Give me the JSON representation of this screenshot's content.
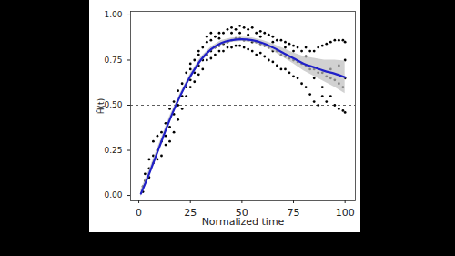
{
  "chart_data": {
    "type": "scatter",
    "x_label": "Normalized time",
    "y_label": "Ĥ(t)",
    "xlim": [
      -4,
      105
    ],
    "ylim": [
      -0.03,
      1.02
    ],
    "xticks": [
      0,
      25,
      50,
      75,
      100
    ],
    "yticks": [
      {
        "value": 0,
        "label": "0.00"
      },
      {
        "value": 0.25,
        "label": "0.25"
      },
      {
        "value": 0.5,
        "label": "0.50"
      },
      {
        "value": 0.75,
        "label": "0.75"
      },
      {
        "value": 1,
        "label": "1.00"
      }
    ],
    "grid": false,
    "color": "#000000",
    "marker": "circle",
    "x": [
      2,
      3,
      5,
      7,
      9,
      11,
      13,
      15,
      17,
      19,
      21,
      23,
      25,
      27,
      29,
      31,
      33,
      35,
      37,
      39,
      41,
      43,
      45,
      47,
      49,
      51,
      53,
      55,
      57,
      59,
      61,
      63,
      65,
      67,
      69,
      71,
      73,
      75,
      77,
      79,
      81,
      83,
      85,
      87,
      89,
      91,
      93,
      95,
      97,
      99,
      100
    ],
    "values": [
      [
        0.02,
        0.05
      ],
      [
        0.08,
        0.12
      ],
      [
        0.15,
        0.2,
        0.1
      ],
      [
        0.22,
        0.3,
        0.18
      ],
      [
        0.25,
        0.33,
        0.2
      ],
      [
        0.3,
        0.35,
        0.22
      ],
      [
        0.33,
        0.4,
        0.28
      ],
      [
        0.38,
        0.48,
        0.3
      ],
      [
        0.45,
        0.52,
        0.35
      ],
      [
        0.5,
        0.58,
        0.42
      ],
      [
        0.55,
        0.62,
        0.48
      ],
      [
        0.6,
        0.68,
        0.55
      ],
      [
        0.64,
        0.7,
        0.6,
        0.73
      ],
      [
        0.68,
        0.75,
        0.63
      ],
      [
        0.72,
        0.78,
        0.67,
        0.8
      ],
      [
        0.75,
        0.82,
        0.7
      ],
      [
        0.78,
        0.85,
        0.75,
        0.88
      ],
      [
        0.8,
        0.86,
        0.76,
        0.9
      ],
      [
        0.82,
        0.88,
        0.78
      ],
      [
        0.83,
        0.9,
        0.8,
        0.87
      ],
      [
        0.84,
        0.9,
        0.8
      ],
      [
        0.85,
        0.92,
        0.82
      ],
      [
        0.86,
        0.93,
        0.82,
        0.9
      ],
      [
        0.87,
        0.92,
        0.83
      ],
      [
        0.87,
        0.94,
        0.83,
        0.9
      ],
      [
        0.86,
        0.93,
        0.82
      ],
      [
        0.86,
        0.92,
        0.81,
        0.89
      ],
      [
        0.85,
        0.93,
        0.8
      ],
      [
        0.85,
        0.9,
        0.78
      ],
      [
        0.84,
        0.91,
        0.79,
        0.88
      ],
      [
        0.83,
        0.9,
        0.77
      ],
      [
        0.82,
        0.89,
        0.75
      ],
      [
        0.8,
        0.88,
        0.74,
        0.85
      ],
      [
        0.8,
        0.86,
        0.72
      ],
      [
        0.78,
        0.86,
        0.7
      ],
      [
        0.77,
        0.85,
        0.7,
        0.82
      ],
      [
        0.76,
        0.84,
        0.68
      ],
      [
        0.75,
        0.83,
        0.66,
        0.8
      ],
      [
        0.74,
        0.82,
        0.65
      ],
      [
        0.73,
        0.8,
        0.62
      ],
      [
        0.72,
        0.82,
        0.6,
        0.77
      ],
      [
        0.7,
        0.8,
        0.56
      ],
      [
        0.7,
        0.8,
        0.52,
        0.65
      ],
      [
        0.68,
        0.82,
        0.5
      ],
      [
        0.68,
        0.83,
        0.55,
        0.6
      ],
      [
        0.66,
        0.84,
        0.52
      ],
      [
        0.65,
        0.85,
        0.55,
        0.7
      ],
      [
        0.64,
        0.86,
        0.5
      ],
      [
        0.62,
        0.86,
        0.48,
        0.72
      ],
      [
        0.6,
        0.86,
        0.47
      ],
      [
        0.65,
        0.85,
        0.46,
        0.75
      ]
    ],
    "smooth": {
      "type": "line",
      "color": "#2020c8",
      "x": [
        1,
        5,
        10,
        15,
        20,
        25,
        30,
        35,
        40,
        45,
        50,
        55,
        60,
        65,
        70,
        75,
        80,
        85,
        90,
        95,
        100
      ],
      "values": [
        0.01,
        0.12,
        0.27,
        0.42,
        0.55,
        0.66,
        0.75,
        0.81,
        0.845,
        0.86,
        0.865,
        0.86,
        0.845,
        0.82,
        0.79,
        0.76,
        0.73,
        0.71,
        0.69,
        0.675,
        0.655
      ],
      "lower": [
        -0.01,
        0.1,
        0.25,
        0.4,
        0.535,
        0.645,
        0.735,
        0.797,
        0.832,
        0.848,
        0.853,
        0.847,
        0.83,
        0.8,
        0.765,
        0.73,
        0.69,
        0.66,
        0.63,
        0.6,
        0.565
      ],
      "upper": [
        0.03,
        0.14,
        0.29,
        0.44,
        0.565,
        0.675,
        0.765,
        0.823,
        0.858,
        0.872,
        0.877,
        0.873,
        0.86,
        0.84,
        0.815,
        0.79,
        0.77,
        0.76,
        0.75,
        0.75,
        0.745
      ],
      "band_color": "#bdbdbd"
    },
    "reference_line": {
      "value": 0.5,
      "line_style": "dashed",
      "color": "#333333"
    }
  }
}
